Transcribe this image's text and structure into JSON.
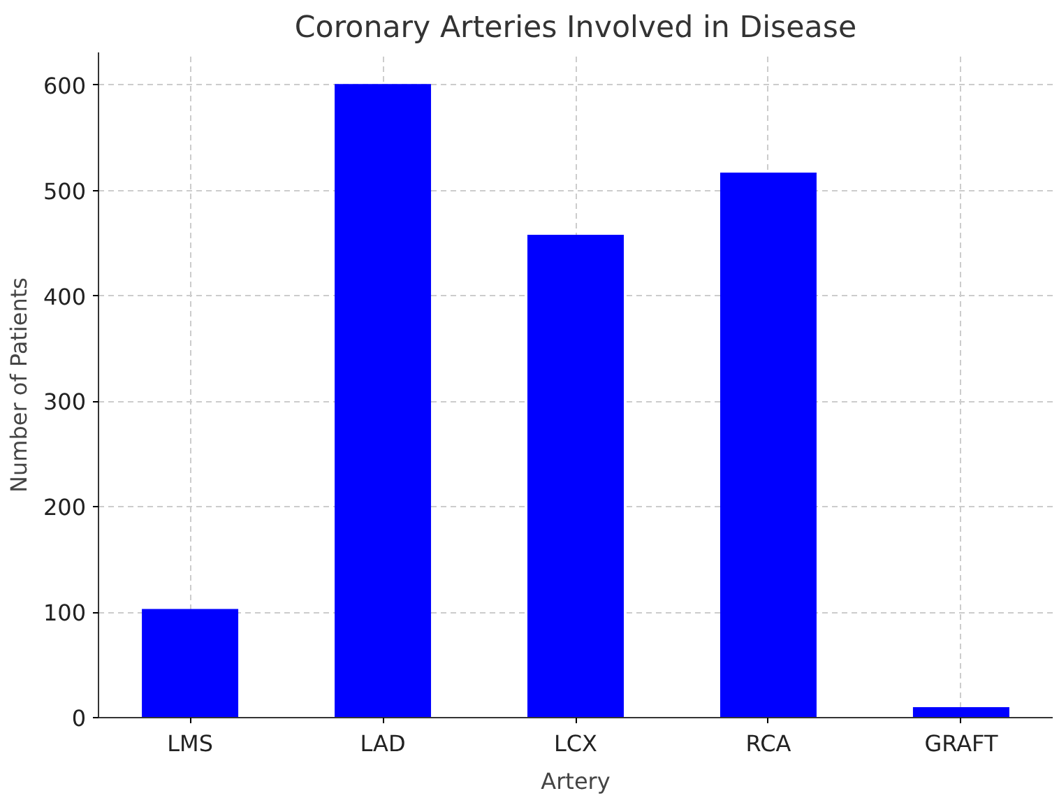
{
  "chart_data": {
    "type": "bar",
    "title": "Coronary Arteries Involved in Disease",
    "xlabel": "Artery",
    "ylabel": "Number of Patients",
    "categories": [
      "LMS",
      "LAD",
      "LCX",
      "RCA",
      "GRAFT"
    ],
    "values": [
      103,
      601,
      458,
      517,
      10
    ],
    "color": "#0000ff",
    "ylim": [
      0,
      631
    ],
    "yticks": [
      0,
      100,
      200,
      300,
      400,
      500,
      600
    ],
    "grid": true
  }
}
